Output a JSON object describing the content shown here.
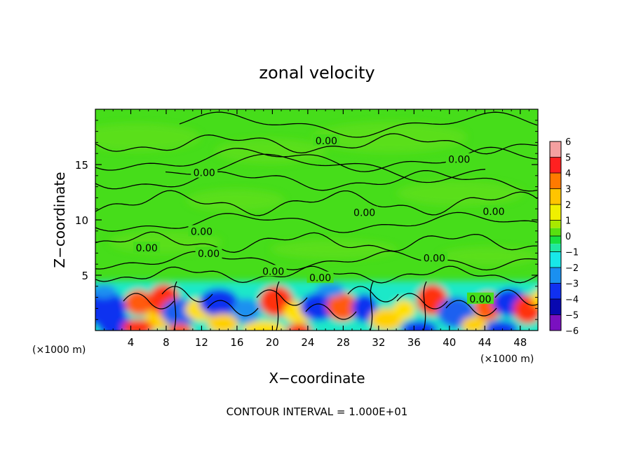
{
  "chart_data": {
    "type": "heatmap",
    "title": "zonal velocity",
    "xlabel": "X−coordinate",
    "ylabel": "Z−coordinate",
    "x_unit_left": "(×1000 m)",
    "x_unit_right": "(×1000 m)",
    "xlim": [
      0,
      50
    ],
    "ylim": [
      0,
      20
    ],
    "x_ticks": [
      4,
      8,
      12,
      16,
      20,
      24,
      28,
      32,
      36,
      40,
      44,
      48
    ],
    "y_ticks": [
      5,
      10,
      15
    ],
    "colorbar": {
      "min": -6,
      "max": 6,
      "ticks": [
        "6",
        "5",
        "4",
        "3",
        "2",
        "1",
        "0",
        "−1",
        "−2",
        "−3",
        "−4",
        "−5",
        "−6"
      ],
      "levels": [
        {
          "from": 5,
          "to": 6,
          "color": "#f4a0a0"
        },
        {
          "from": 4,
          "to": 5,
          "color": "#ff2020"
        },
        {
          "from": 3,
          "to": 4,
          "color": "#ff7a00"
        },
        {
          "from": 2,
          "to": 3,
          "color": "#ffc400"
        },
        {
          "from": 1,
          "to": 2,
          "color": "#f0f000"
        },
        {
          "from": 0.5,
          "to": 1,
          "color": "#a8e800"
        },
        {
          "from": 0,
          "to": 0.5,
          "color": "#58e010"
        },
        {
          "from": -0.5,
          "to": 0,
          "color": "#18e040"
        },
        {
          "from": -1,
          "to": -0.5,
          "color": "#20e8a0"
        },
        {
          "from": -2,
          "to": -1,
          "color": "#18e8e8"
        },
        {
          "from": -3,
          "to": -2,
          "color": "#1a90f0"
        },
        {
          "from": -4,
          "to": -3,
          "color": "#1030f0"
        },
        {
          "from": -5,
          "to": -4,
          "color": "#0808b0"
        },
        {
          "from": -6,
          "to": -5,
          "color": "#7a10c0"
        }
      ]
    },
    "contour_labels": [
      {
        "text": "0.00",
        "x": 12.3,
        "z": 14.2
      },
      {
        "text": "0.00",
        "x": 26.1,
        "z": 17.1
      },
      {
        "text": "0.00",
        "x": 12.0,
        "z": 8.9
      },
      {
        "text": "0.00",
        "x": 5.8,
        "z": 7.4
      },
      {
        "text": "0.00",
        "x": 12.8,
        "z": 6.9
      },
      {
        "text": "0.00",
        "x": 20.1,
        "z": 5.3
      },
      {
        "text": "0.00",
        "x": 25.4,
        "z": 4.7
      },
      {
        "text": "0.00",
        "x": 30.4,
        "z": 10.6
      },
      {
        "text": "0.00",
        "x": 38.3,
        "z": 6.5
      },
      {
        "text": "0.00",
        "x": 41.1,
        "z": 15.4
      },
      {
        "text": "0.00",
        "x": 45.0,
        "z": 10.7
      },
      {
        "text": "0.00",
        "x": 43.5,
        "z": 2.8
      }
    ],
    "annotation": "CONTOUR INTERVAL = 1.000E+01",
    "legend_position": "right"
  }
}
